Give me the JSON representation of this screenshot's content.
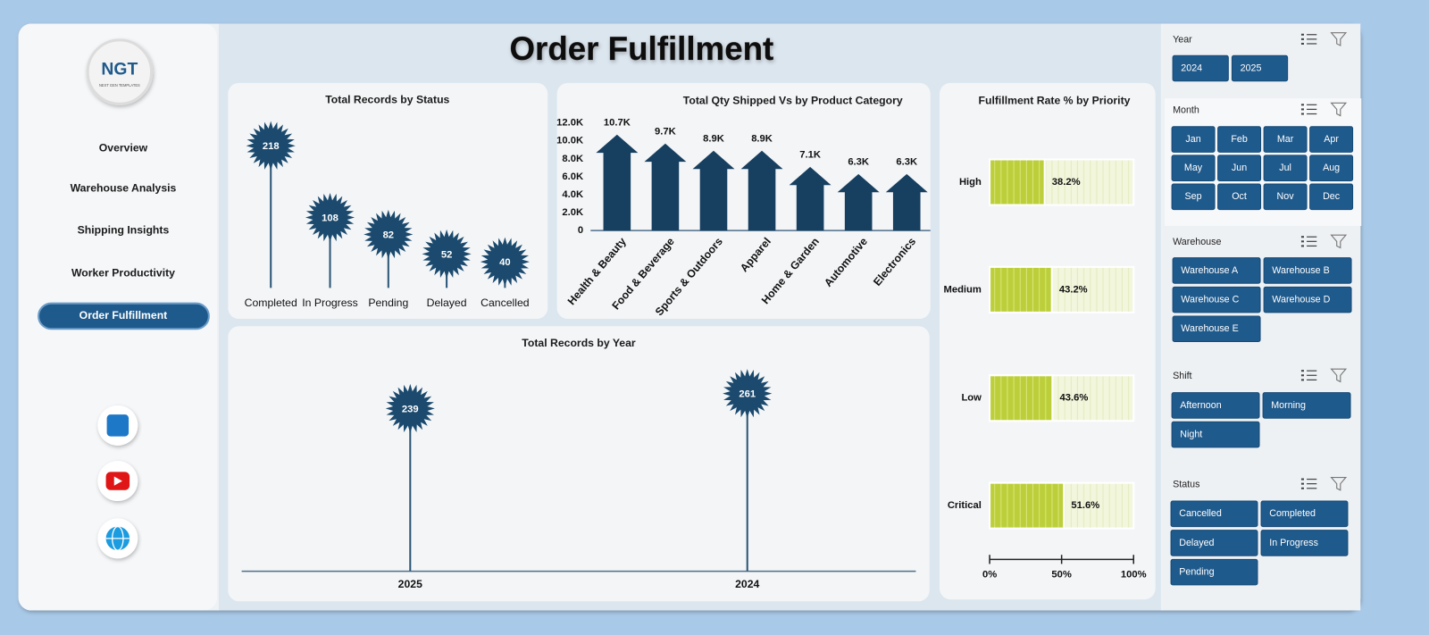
{
  "logo": {
    "text": "NGT",
    "subtext": "NEXT GEN TEMPLATES"
  },
  "title": "Order Fulfillment",
  "nav": [
    "Overview",
    "Warehouse Analysis",
    "Shipping Insights",
    "Worker Productivity",
    "Order Fulfillment"
  ],
  "slicers": [
    {
      "title": "Year",
      "items": [
        "2024",
        "2025"
      ]
    },
    {
      "title": "Month",
      "items": [
        "Jan",
        "Feb",
        "Mar",
        "Apr",
        "May",
        "Jun",
        "Jul",
        "Aug",
        "Sep",
        "Oct",
        "Nov",
        "Dec"
      ]
    },
    {
      "title": "Warehouse",
      "items": [
        "Warehouse A",
        "Warehouse B",
        "Warehouse C",
        "Warehouse D",
        "Warehouse E"
      ]
    },
    {
      "title": "Shift",
      "items": [
        "Afternoon",
        "Morning",
        "Night"
      ]
    },
    {
      "title": "Status",
      "items": [
        "Cancelled",
        "Completed",
        "Delayed",
        "In Progress",
        "Pending"
      ]
    }
  ],
  "chart_data": [
    {
      "type": "lollipop",
      "title": "Total Records by Status",
      "categories": [
        "Completed",
        "In Progress",
        "Pending",
        "Delayed",
        "Cancelled"
      ],
      "values": [
        218,
        108,
        82,
        52,
        40
      ],
      "color": "#1b4a6e"
    },
    {
      "type": "arrow-bar",
      "title": "Total Qty Shipped Vs  by Product Category",
      "categories": [
        "Health & Beauty",
        "Food & Beverage",
        "Sports & Outdoors",
        "Apparel",
        "Home & Garden",
        "Automotive",
        "Electronics"
      ],
      "values": [
        10700,
        9700,
        8900,
        8900,
        7100,
        6300,
        6300
      ],
      "value_labels": [
        "10.7K",
        "9.7K",
        "8.9K",
        "8.9K",
        "7.1K",
        "6.3K",
        "6.3K"
      ],
      "ylim": [
        0,
        12000
      ],
      "yticks": [
        0,
        {
          "value": 2000,
          "label": "2.0K"
        },
        {
          "value": 4000,
          "label": "4.0K"
        },
        {
          "value": 6000,
          "label": "6.0K"
        },
        {
          "value": 8000,
          "label": "8.0K"
        },
        {
          "value": 10000,
          "label": "10.0K"
        },
        {
          "value": 12000,
          "label": "12.0K"
        }
      ],
      "color": "#163f60"
    },
    {
      "type": "progress-bar",
      "title": "Fulfillment Rate % by Priority",
      "categories": [
        "High",
        "Medium",
        "Low",
        "Critical"
      ],
      "values": [
        38.2,
        43.2,
        43.6,
        51.6
      ],
      "value_labels": [
        "38.2%",
        "43.2%",
        "43.6%",
        "51.6%"
      ],
      "xlim": [
        0,
        100
      ],
      "xticks": [
        {
          "value": 0,
          "label": "0%"
        },
        {
          "value": 50,
          "label": "50%"
        },
        {
          "value": 100,
          "label": "100%"
        }
      ],
      "color": "#bccf3a"
    },
    {
      "type": "lollipop",
      "title": "Total Records by Year",
      "categories": [
        "2025",
        "2024"
      ],
      "values": [
        239,
        261
      ],
      "color": "#1b4a6e"
    }
  ]
}
